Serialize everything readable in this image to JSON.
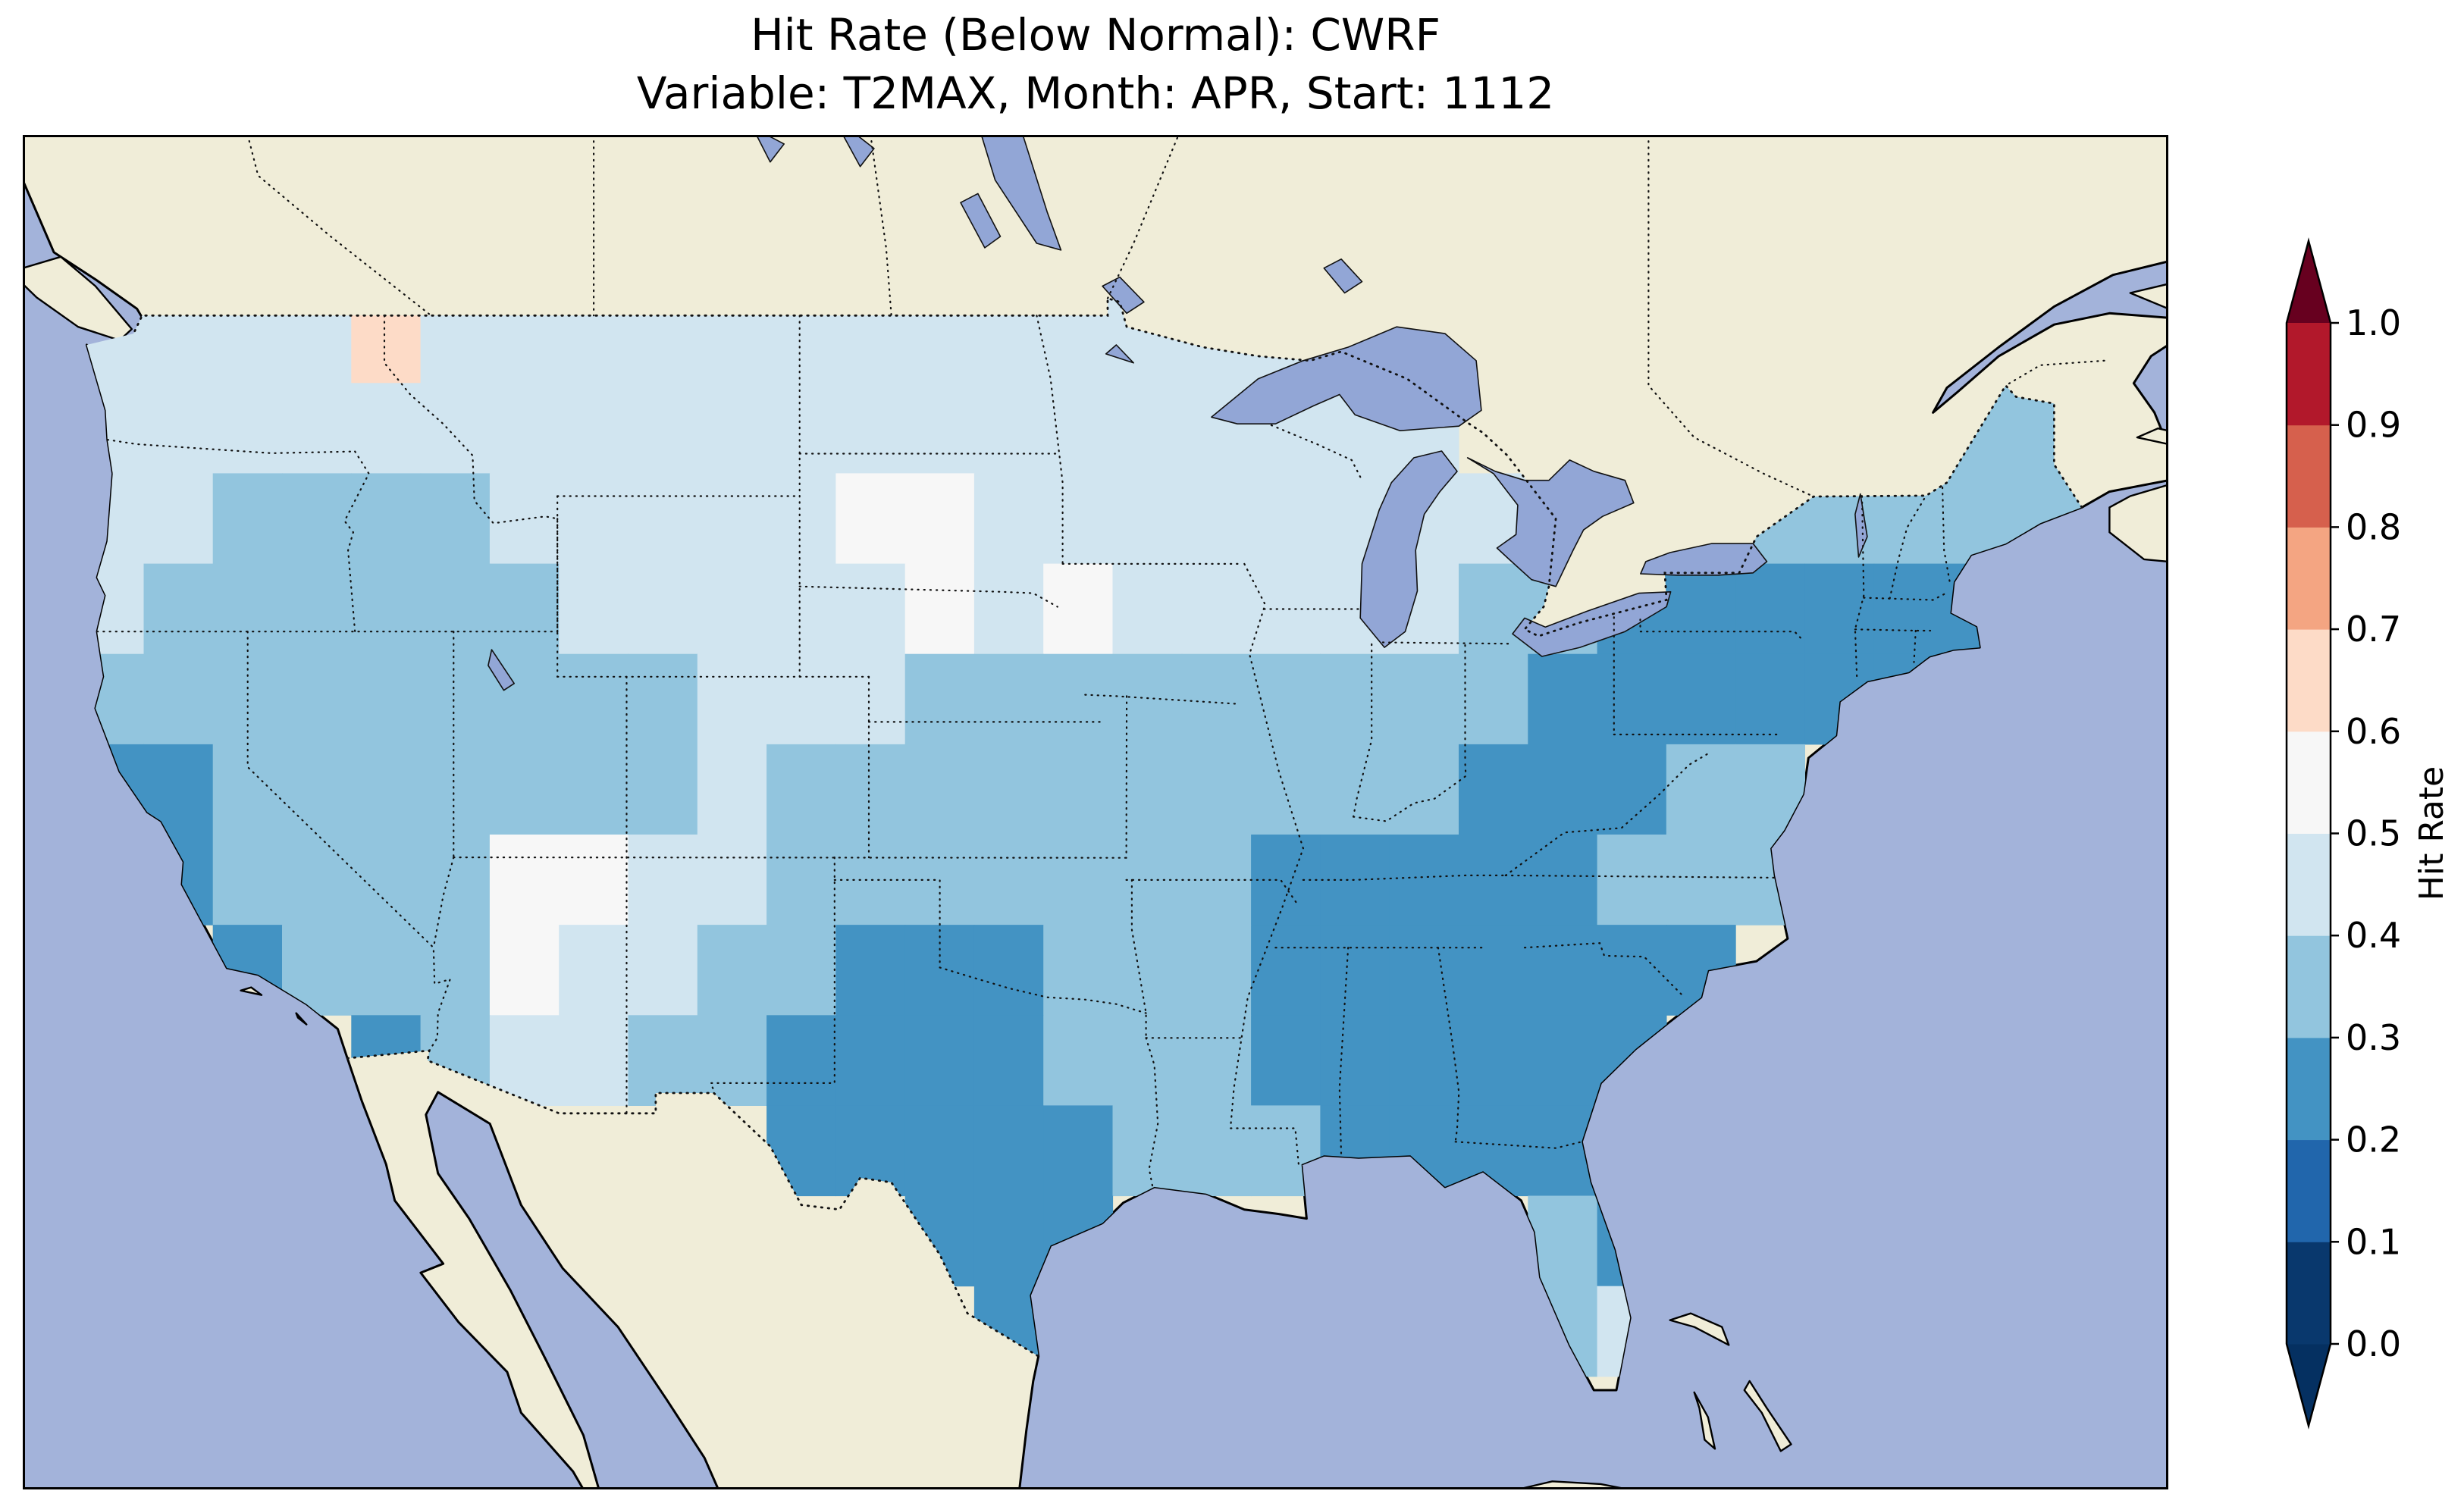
{
  "chart_data": {
    "type": "heatmap",
    "title": "Hit Rate (Below Normal): CWRF",
    "subtitle": "Variable: T2MAX, Month: APR, Start: 1112",
    "metric": "Hit Rate (Below Normal)",
    "model": "CWRF",
    "variable": "T2MAX",
    "month": "APR",
    "start": "1112",
    "region": "Contiguous United States",
    "colorbar": {
      "label": "Hit Rate",
      "ticks": [
        "0.0",
        "0.1",
        "0.2",
        "0.3",
        "0.4",
        "0.5",
        "0.6",
        "0.7",
        "0.8",
        "0.9",
        "1.0"
      ],
      "bin_colors_low_to_high": [
        "#09386d",
        "#2166ac",
        "#4393c3",
        "#92c5de",
        "#d1e5f0",
        "#f7f7f7",
        "#fddbc7",
        "#f4a582",
        "#d6604d",
        "#b2182b"
      ],
      "under_color": "#053061",
      "over_color": "#67001f"
    },
    "map_colors": {
      "ocean": "#a3b3da",
      "land": "#f0edd8",
      "lake": "#92a6d6",
      "coastline": "#000000"
    },
    "grid": {
      "lon_west": -125,
      "lat_north": 49.5,
      "cell_deg": 2,
      "legend": {
        "3": 0.25,
        "4": 0.35,
        "5": 0.45,
        "6": 0.55,
        "7": 0.65,
        ".": null
      },
      "rows": [
        "555575555555555555............",
        "55555555555555555555.......44.",
        "554444555556655555555..444444.",
        "5444444555556565555544333333..",
        "444444444555444444444333333...",
        "3344444445444444444433344.....",
        ".344446655444444433333444.....",
        "..3444655443334443333333......",
        "....3455443333444333333.......",
        "..........3333344433333.......",
        "............333......43.......",
        ".............3.......45......."
      ]
    }
  }
}
